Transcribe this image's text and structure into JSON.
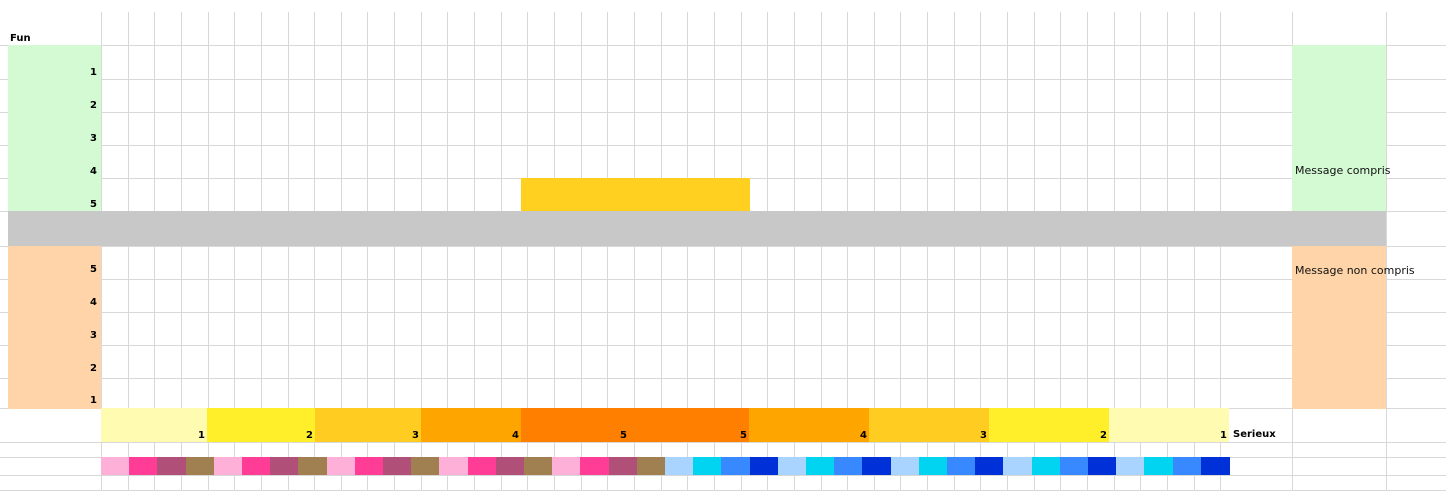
{
  "labels": {
    "fun": "Fun",
    "serieux": "Serieux",
    "message_compris": "Message compris",
    "message_non_compris": "Message non compris"
  },
  "fun_rows": [
    "1",
    "2",
    "3",
    "4",
    "5"
  ],
  "non_rows": [
    "5",
    "4",
    "3",
    "2",
    "1"
  ],
  "scale": [
    {
      "label": "1",
      "color": "#FFFBB0"
    },
    {
      "label": "2",
      "color": "#FFEE2A"
    },
    {
      "label": "3",
      "color": "#FFCC22"
    },
    {
      "label": "4",
      "color": "#FFA500"
    },
    {
      "label": "5",
      "color": "#FF7F00"
    },
    {
      "label": "5",
      "color": "#FF7F00"
    },
    {
      "label": "4",
      "color": "#FFA500"
    },
    {
      "label": "3",
      "color": "#FFCC22"
    },
    {
      "label": "2",
      "color": "#FFEE2A"
    },
    {
      "label": "1",
      "color": "#FFFBB0"
    }
  ],
  "palette_pink": [
    "#FFB0D8",
    "#FF3C96",
    "#B05078",
    "#A08050"
  ],
  "palette_blue": [
    "#A8D4FF",
    "#00D4F0",
    "#3888FF",
    "#0030D8"
  ],
  "colors": {
    "fun_green": "#D4FAD4",
    "non_orange": "#FFD4A8",
    "divider_gray": "#C8C8C8",
    "highlight": "#FFD020",
    "grid": "#D8D8D8"
  }
}
